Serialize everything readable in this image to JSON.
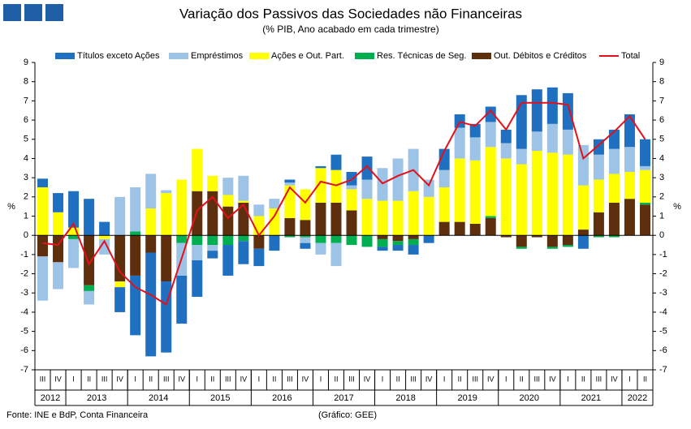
{
  "header": {
    "title": "Variação dos Passivos das Sociedades não Financeiras",
    "subtitle": "(% PIB, Ano acabado em cada trimestre)"
  },
  "chart_data": {
    "type": "stacked-bar-line",
    "y_label": "%",
    "categories": [
      "III",
      "IV",
      "I",
      "II",
      "III",
      "IV",
      "I",
      "II",
      "III",
      "IV",
      "I",
      "II",
      "III",
      "IV",
      "I",
      "II",
      "III",
      "IV",
      "I",
      "II",
      "III",
      "IV",
      "I",
      "II",
      "III",
      "IV",
      "I",
      "II",
      "III",
      "IV",
      "I",
      "II",
      "III",
      "IV",
      "I",
      "II",
      "III",
      "IV",
      "I",
      "II"
    ],
    "years": [
      {
        "label": "2012",
        "quarters": 2
      },
      {
        "label": "2013",
        "quarters": 4
      },
      {
        "label": "2014",
        "quarters": 4
      },
      {
        "label": "2015",
        "quarters": 4
      },
      {
        "label": "2016",
        "quarters": 4
      },
      {
        "label": "2017",
        "quarters": 4
      },
      {
        "label": "2018",
        "quarters": 4
      },
      {
        "label": "2019",
        "quarters": 4
      },
      {
        "label": "2020",
        "quarters": 4
      },
      {
        "label": "2021",
        "quarters": 4
      },
      {
        "label": "2022",
        "quarters": 2
      }
    ],
    "series": [
      {
        "name": "Títulos exceto Ações",
        "color": "#1f70c1",
        "values": [
          0.45,
          1.0,
          1.9,
          1.9,
          0.7,
          -1.3,
          -3.1,
          -5.4,
          -3.7,
          -2.5,
          -1.9,
          -0.4,
          -1.6,
          -1.2,
          -0.9,
          -0.8,
          0.15,
          -0.3,
          0.1,
          0.8,
          0.7,
          1.2,
          -0.2,
          -0.3,
          -0.5,
          -0.4,
          1.1,
          0.7,
          0.7,
          0.8,
          0.7,
          2.8,
          2.2,
          1.9,
          1.9,
          -0.7,
          0.8,
          1.0,
          1.7,
          1.4
        ]
      },
      {
        "name": "Empréstimos",
        "color": "#9dc3e6",
        "values": [
          -2.3,
          -1.4,
          -1.5,
          -0.7,
          -0.8,
          2.0,
          2.3,
          1.8,
          0.15,
          -1.7,
          -0.8,
          -0.3,
          0.9,
          1.3,
          0.6,
          0.5,
          0.15,
          -0.3,
          -0.6,
          -1.2,
          0.2,
          1.0,
          1.7,
          2.2,
          2.2,
          0.9,
          0.9,
          1.6,
          1.2,
          1.3,
          0.8,
          0.8,
          1.0,
          1.5,
          1.3,
          2.1,
          1.3,
          1.3,
          1.3,
          0.2
        ]
      },
      {
        "name": "Ações e Out. Part.",
        "color": "#ffff00",
        "values": [
          2.5,
          1.2,
          0.4,
          0,
          -0.2,
          -0.3,
          0,
          1.4,
          2.2,
          2.9,
          2.2,
          0.8,
          0.6,
          0.1,
          1.0,
          1.4,
          1.7,
          1.6,
          1.8,
          1.7,
          1.1,
          1.9,
          1.8,
          1.8,
          2.3,
          2.0,
          1.8,
          3.3,
          3.3,
          3.6,
          4.0,
          3.7,
          4.4,
          4.3,
          4.2,
          2.3,
          1.7,
          1.5,
          1.4,
          1.7
        ]
      },
      {
        "name": "Res. Técnicas de Seg.",
        "color": "#00b050",
        "values": [
          0,
          0,
          -0.2,
          -0.3,
          0,
          0,
          0.2,
          0,
          0,
          -0.4,
          -0.5,
          -0.5,
          -0.5,
          -0.3,
          0,
          0,
          -0.1,
          -0.1,
          -0.4,
          -0.4,
          -0.5,
          -0.6,
          -0.4,
          -0.2,
          -0.3,
          0,
          0,
          0,
          0,
          0.1,
          0,
          -0.1,
          0,
          -0.1,
          -0.1,
          0,
          -0.1,
          -0.1,
          0,
          0.1
        ]
      },
      {
        "name": "Out. Débitos e Créditos",
        "color": "#5e2f0d",
        "values": [
          -1.1,
          -1.4,
          0,
          -2.6,
          0,
          -2.4,
          -2.1,
          -0.9,
          -2.4,
          0,
          2.3,
          2.3,
          1.5,
          1.7,
          -0.7,
          0,
          0.9,
          0.8,
          1.7,
          1.7,
          1.3,
          0,
          -0.2,
          -0.3,
          -0.2,
          0,
          0.7,
          0.7,
          0.6,
          0.9,
          -0.1,
          -0.6,
          -0.1,
          -0.6,
          -0.5,
          0.3,
          1.2,
          1.7,
          1.9,
          1.6
        ]
      }
    ],
    "total": {
      "name": "Total",
      "color": "#e3101a",
      "values": [
        -0.4,
        -0.5,
        0.6,
        -1.5,
        -0.3,
        -1.9,
        -2.7,
        -3.1,
        -3.6,
        -1.2,
        1.3,
        2.0,
        0.9,
        1.6,
        0.0,
        1.0,
        2.5,
        1.7,
        2.8,
        2.6,
        2.9,
        3.6,
        2.7,
        3.1,
        3.4,
        2.6,
        4.4,
        5.9,
        5.7,
        6.5,
        5.5,
        6.9,
        6.9,
        6.9,
        6.8,
        4.0,
        4.7,
        5.4,
        6.2,
        5.0
      ]
    },
    "ylim": [
      -7,
      9
    ],
    "yticks": [
      -7,
      -6,
      -5,
      -4,
      -3,
      -2,
      -1,
      0,
      1,
      2,
      3,
      4,
      5,
      6,
      7,
      8,
      9
    ]
  },
  "footer": {
    "source": "Fonte: INE e BdP, Conta Financeira",
    "credit": "(Gráfico: GEE)"
  }
}
